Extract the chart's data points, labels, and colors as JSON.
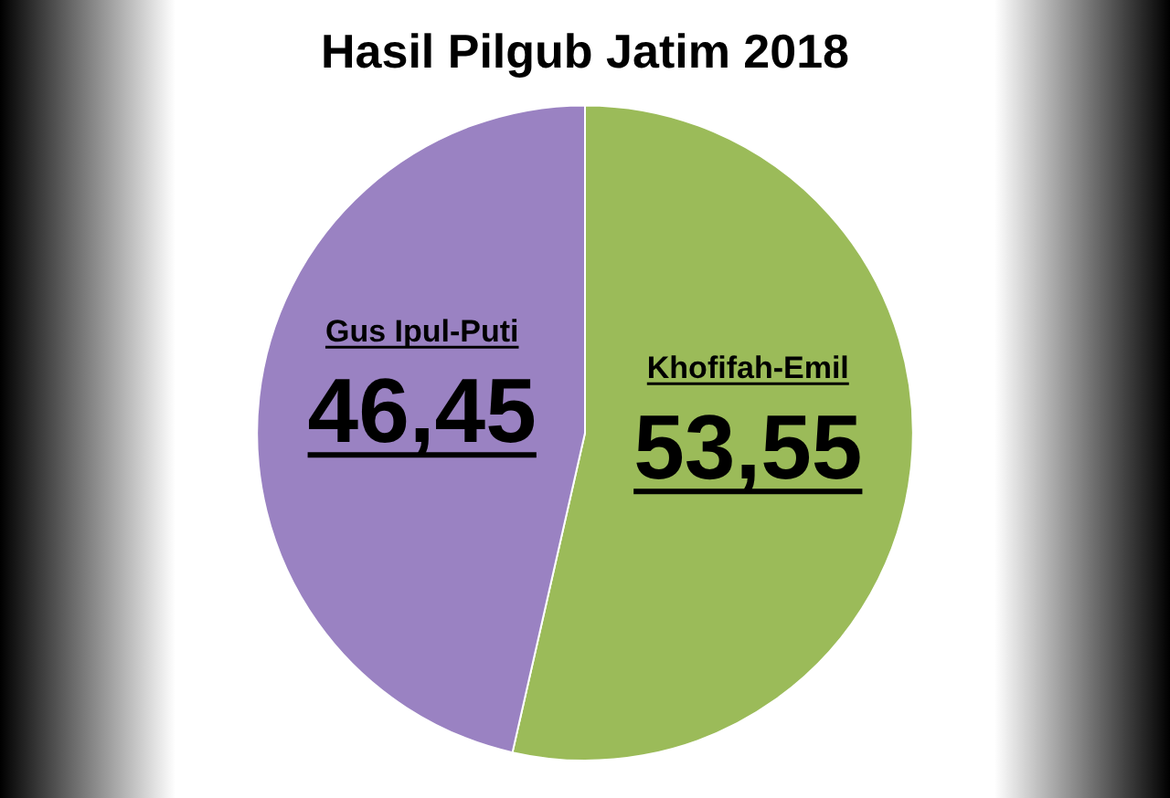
{
  "chart_data": {
    "type": "pie",
    "title": "Hasil Pilgub Jatim 2018",
    "categories": [
      "Khofifah-Emil",
      "Gus Ipul-Puti"
    ],
    "values": [
      53.55,
      46.45
    ],
    "value_labels": [
      "53,55",
      "46,45"
    ],
    "colors": [
      "#9bbb59",
      "#9a82c2"
    ],
    "legend": false
  }
}
